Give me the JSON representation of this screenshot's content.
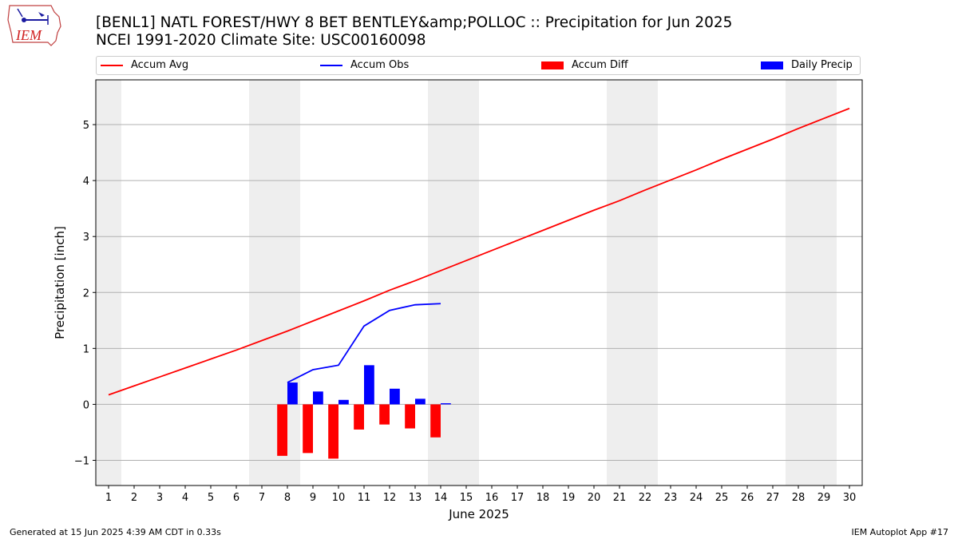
{
  "header": {
    "title_line1": "[BENL1] NATL FOREST/HWY 8 BET BENTLEY&amp;POLLOC :: Precipitation for Jun 2025",
    "title_line2": "NCEI 1991-2020 Climate Site: USC00160098"
  },
  "logo": {
    "text": "IEM",
    "icon": "iem-logo-icon"
  },
  "legend": [
    {
      "label": "Accum Avg",
      "color": "#ff0000",
      "kind": "line"
    },
    {
      "label": "Accum Obs",
      "color": "#0000ff",
      "kind": "line"
    },
    {
      "label": "Accum Diff",
      "color": "#ff0000",
      "kind": "bar"
    },
    {
      "label": "Daily Precip",
      "color": "#0000ff",
      "kind": "bar"
    }
  ],
  "footer": {
    "left": "Generated at 15 Jun 2025 4:39 AM CDT in 0.33s",
    "right": "IEM Autoplot App #17"
  },
  "chart_data": {
    "type": "bar",
    "xlabel": "June 2025",
    "ylabel": "Precipitation [inch]",
    "xlim": [
      0.5,
      30.5
    ],
    "ylim": [
      -1.45,
      5.8
    ],
    "yticks": [
      -1,
      0,
      1,
      2,
      3,
      4,
      5
    ],
    "ytick_labels": [
      "−1",
      "0",
      "1",
      "2",
      "3",
      "4",
      "5"
    ],
    "categories": [
      "1",
      "2",
      "3",
      "4",
      "5",
      "6",
      "7",
      "8",
      "9",
      "10",
      "11",
      "12",
      "13",
      "14",
      "15",
      "16",
      "17",
      "18",
      "19",
      "20",
      "21",
      "22",
      "23",
      "24",
      "25",
      "26",
      "27",
      "28",
      "29",
      "30"
    ],
    "weekend_days": [
      1,
      7,
      8,
      14,
      15,
      21,
      22,
      28,
      29
    ],
    "grid": true,
    "series": [
      {
        "name": "Accum Avg",
        "type": "line",
        "color": "#ff0000",
        "x": [
          1,
          2,
          3,
          4,
          5,
          6,
          7,
          8,
          9,
          10,
          11,
          12,
          13,
          14,
          15,
          16,
          17,
          18,
          19,
          20,
          21,
          22,
          23,
          24,
          25,
          26,
          27,
          28,
          29,
          30
        ],
        "values": [
          0.17,
          0.33,
          0.49,
          0.65,
          0.81,
          0.97,
          1.14,
          1.31,
          1.49,
          1.67,
          1.85,
          2.04,
          2.21,
          2.39,
          2.57,
          2.75,
          2.93,
          3.11,
          3.29,
          3.47,
          3.64,
          3.83,
          4.01,
          4.19,
          4.38,
          4.56,
          4.74,
          4.93,
          5.11,
          5.29
        ]
      },
      {
        "name": "Accum Obs",
        "type": "line",
        "color": "#0000ff",
        "x": [
          8,
          9,
          10,
          11,
          12,
          13,
          14
        ],
        "values": [
          0.39,
          0.62,
          0.7,
          1.4,
          1.68,
          1.78,
          1.8
        ]
      },
      {
        "name": "Accum Diff",
        "type": "bar",
        "color": "#ff0000",
        "offset": -0.2,
        "x": [
          8,
          9,
          10,
          11,
          12,
          13,
          14
        ],
        "values": [
          -0.92,
          -0.87,
          -0.97,
          -0.45,
          -0.36,
          -0.43,
          -0.59
        ]
      },
      {
        "name": "Daily Precip",
        "type": "bar",
        "color": "#0000ff",
        "offset": 0.2,
        "x": [
          8,
          9,
          10,
          11,
          12,
          13,
          14
        ],
        "values": [
          0.39,
          0.23,
          0.08,
          0.7,
          0.28,
          0.1,
          0.02
        ]
      }
    ]
  }
}
